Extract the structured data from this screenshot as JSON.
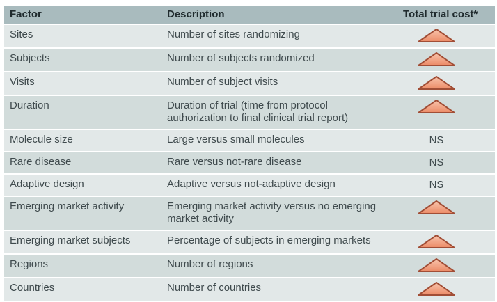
{
  "table": {
    "columns": [
      "Factor",
      "Description",
      "Total trial cost*"
    ],
    "rows": [
      {
        "factor": "Sites",
        "description": "Number of sites randomizing",
        "cost": "increase"
      },
      {
        "factor": "Subjects",
        "description": "Number of subjects randomized",
        "cost": "increase"
      },
      {
        "factor": "Visits",
        "description": "Number of subject visits",
        "cost": "increase"
      },
      {
        "factor": "Duration",
        "description": "Duration of trial (time from protocol authorization to final clinical trial report)",
        "cost": "increase"
      },
      {
        "factor": "Molecule size",
        "description": "Large versus small molecules",
        "cost": "NS"
      },
      {
        "factor": "Rare disease",
        "description": "Rare versus not-rare disease",
        "cost": "NS"
      },
      {
        "factor": "Adaptive design",
        "description": "Adaptive versus not-adaptive design",
        "cost": "NS"
      },
      {
        "factor": "Emerging market activity",
        "description": "Emerging market activity versus no emerging market activity",
        "cost": "increase"
      },
      {
        "factor": "Emerging market subjects",
        "description": "Percentage of subjects in emerging markets",
        "cost": "increase"
      },
      {
        "factor": "Regions",
        "description": "Number of regions",
        "cost": "increase"
      },
      {
        "factor": "Countries",
        "description": "Number of countries",
        "cost": "increase"
      }
    ]
  },
  "colors": {
    "page_bg": "#ffffff",
    "header_bg": "#a9bbbe",
    "row_light": "#e2e8e8",
    "row_dark": "#d2dcdb",
    "separator": "#ffffff",
    "header_text": "#202b2e",
    "body_text": "#3f4a4d",
    "triangle_top": "#f9c5ad",
    "triangle_bottom": "#eb8a66",
    "triangle_stroke": "#a14e36"
  }
}
